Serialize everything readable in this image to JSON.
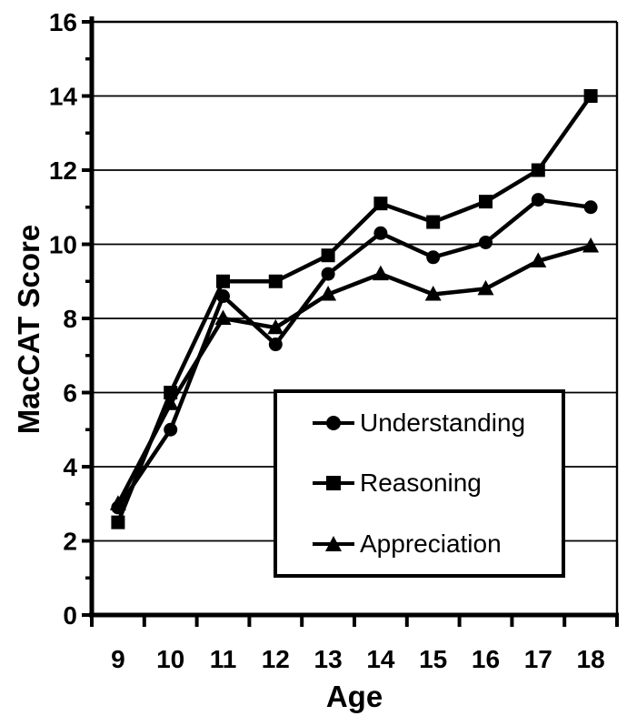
{
  "chart_data": {
    "type": "line",
    "title": "",
    "xlabel": "Age",
    "ylabel": "MacCAT Score",
    "x": [
      9,
      10,
      11,
      12,
      13,
      14,
      15,
      16,
      17,
      18
    ],
    "series": [
      {
        "name": "Understanding",
        "marker": "circle",
        "values": [
          2.9,
          5.0,
          8.6,
          7.3,
          9.2,
          10.3,
          9.65,
          10.05,
          11.2,
          11.0
        ]
      },
      {
        "name": "Reasoning",
        "marker": "square",
        "values": [
          2.5,
          6.0,
          9.0,
          9.0,
          9.7,
          11.1,
          10.6,
          11.15,
          12.0,
          14.0
        ]
      },
      {
        "name": "Appreciation",
        "marker": "triangle",
        "values": [
          3.0,
          5.7,
          8.0,
          7.75,
          8.65,
          9.2,
          8.65,
          8.8,
          9.55,
          9.95
        ]
      }
    ],
    "ylim": [
      0,
      16
    ],
    "y_major_ticks": [
      0,
      2,
      4,
      6,
      8,
      10,
      12,
      14,
      16
    ],
    "y_minor_ticks": [
      1,
      3,
      5,
      7,
      9,
      11,
      13,
      15
    ],
    "grid": "horizontal",
    "legend_position": "inside-bottom-center",
    "colors": {
      "line": "#000000",
      "background": "#ffffff"
    }
  }
}
